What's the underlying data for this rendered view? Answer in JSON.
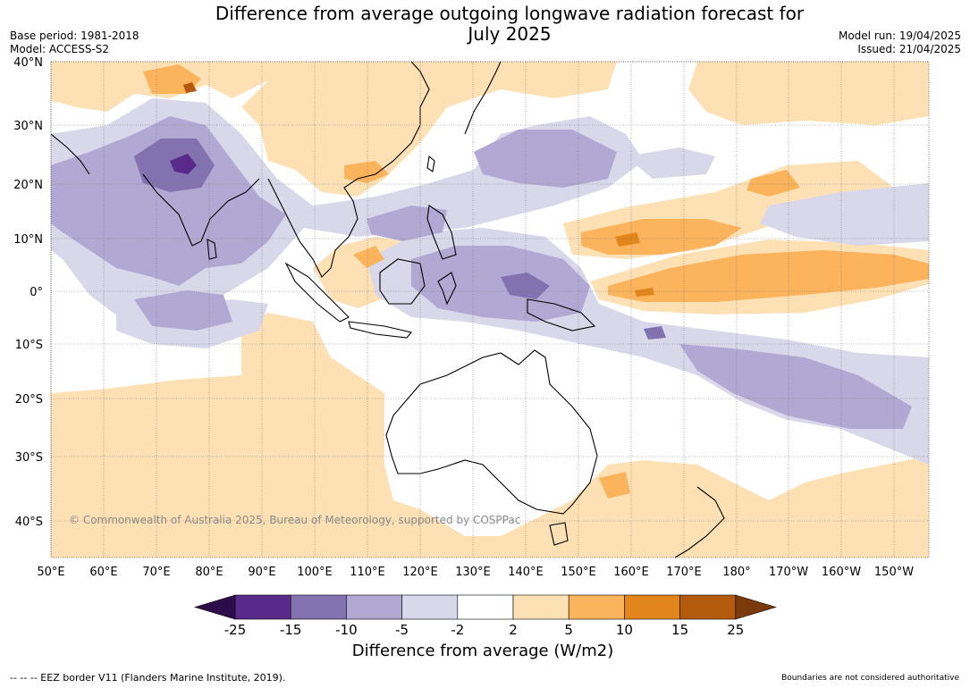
{
  "title_line1": "Difference from average outgoing longwave radiation forecast for",
  "title_line2": "July 2025",
  "meta": {
    "base_period": "Base period: 1981-2018",
    "model": "Model: ACCESS-S2",
    "model_run": "Model run: 19/04/2025",
    "issued": "Issued: 21/04/2025"
  },
  "lat_labels": [
    "40°N",
    "30°N",
    "20°N",
    "10°N",
    "0°",
    "10°S",
    "20°S",
    "30°S",
    "40°S"
  ],
  "lon_labels": [
    "50°E",
    "60°E",
    "70°E",
    "80°E",
    "90°E",
    "100°E",
    "110°E",
    "120°E",
    "130°E",
    "140°E",
    "150°E",
    "160°E",
    "170°E",
    "180°",
    "170°W",
    "160°W",
    "150°W"
  ],
  "copyright": "© Commonwealth of Australia 2025, Bureau of Meteorology, supported by COSPPac",
  "colorbar": {
    "ticks": [
      "-25",
      "-15",
      "-10",
      "-5",
      "-2",
      "2",
      "5",
      "10",
      "15",
      "25"
    ],
    "colors": [
      "#2e0c4a",
      "#5a2a8a",
      "#8272b0",
      "#b1a9d3",
      "#d8d8ea",
      "#ffffff",
      "#fde1b4",
      "#fbb35c",
      "#e2861b",
      "#b35a0d",
      "#7a3a0b"
    ],
    "title": "Difference from average (W/m2)"
  },
  "footer_left": "--  --  -- EEZ border V11 (Flanders Marine Institute, 2019).",
  "footer_right": "Boundaries are not considered authoritative"
}
